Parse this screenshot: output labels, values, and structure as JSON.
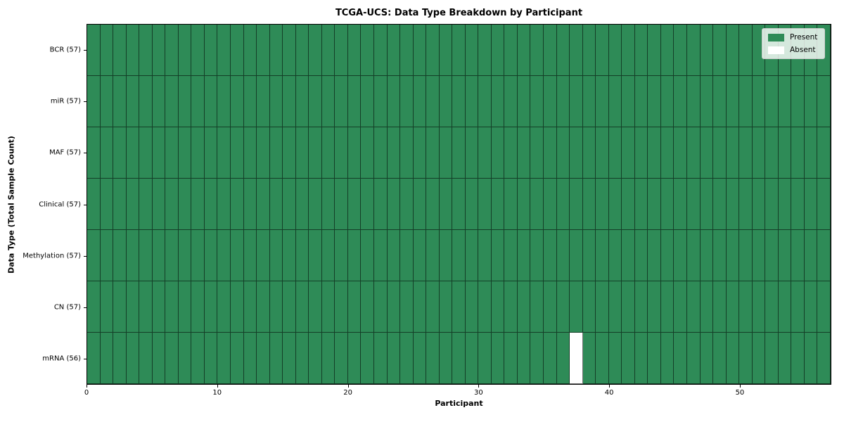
{
  "chart_data": {
    "type": "heatmap",
    "title": "TCGA-UCS: Data Type Breakdown by Participant",
    "xlabel": "Participant",
    "ylabel": "Data Type (Total Sample Count)",
    "x_range": [
      0,
      57
    ],
    "x_ticks": [
      0,
      10,
      20,
      30,
      40,
      50
    ],
    "n_participants": 57,
    "rows": [
      {
        "label": "BCR (57)",
        "total": 57,
        "absent_participants": []
      },
      {
        "label": "miR (57)",
        "total": 57,
        "absent_participants": []
      },
      {
        "label": "MAF (57)",
        "total": 57,
        "absent_participants": []
      },
      {
        "label": "Clinical (57)",
        "total": 57,
        "absent_participants": []
      },
      {
        "label": "Methylation (57)",
        "total": 57,
        "absent_participants": []
      },
      {
        "label": "CN (57)",
        "total": 57,
        "absent_participants": []
      },
      {
        "label": "mRNA (56)",
        "total": 56,
        "absent_participants": [
          37
        ]
      }
    ],
    "colors": {
      "present": "#2e8b57",
      "absent": "#ffffff"
    },
    "legend": [
      {
        "label": "Present",
        "color": "#2e8b57"
      },
      {
        "label": "Absent",
        "color": "#ffffff"
      }
    ],
    "legend_position": "upper right",
    "grid": true
  }
}
